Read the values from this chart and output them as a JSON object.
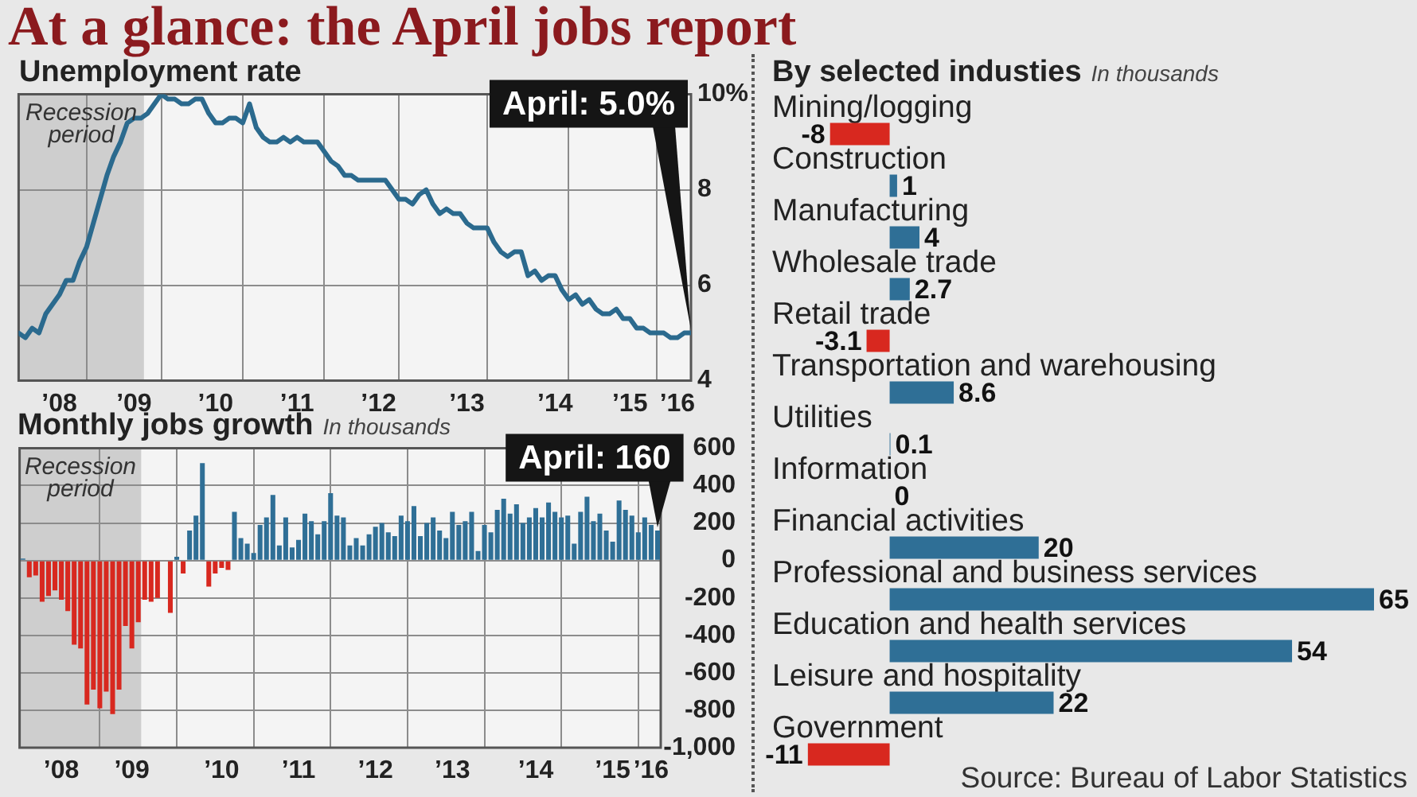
{
  "chart_data": [
    {
      "type": "other",
      "title": "At a glance: the April jobs report"
    },
    {
      "type": "line",
      "title": "Unemployment rate",
      "x": [
        "2008-01",
        "2008-02",
        "2008-03",
        "2008-04",
        "2008-05",
        "2008-06",
        "2008-07",
        "2008-08",
        "2008-09",
        "2008-10",
        "2008-11",
        "2008-12",
        "2009-01",
        "2009-02",
        "2009-03",
        "2009-04",
        "2009-05",
        "2009-06",
        "2009-07",
        "2009-08",
        "2009-09",
        "2009-10",
        "2009-11",
        "2009-12",
        "2010-01",
        "2010-02",
        "2010-03",
        "2010-04",
        "2010-05",
        "2010-06",
        "2010-07",
        "2010-08",
        "2010-09",
        "2010-10",
        "2010-11",
        "2010-12",
        "2011-01",
        "2011-02",
        "2011-03",
        "2011-04",
        "2011-05",
        "2011-06",
        "2011-07",
        "2011-08",
        "2011-09",
        "2011-10",
        "2011-11",
        "2011-12",
        "2012-01",
        "2012-02",
        "2012-03",
        "2012-04",
        "2012-05",
        "2012-06",
        "2012-07",
        "2012-08",
        "2012-09",
        "2012-10",
        "2012-11",
        "2012-12",
        "2013-01",
        "2013-02",
        "2013-03",
        "2013-04",
        "2013-05",
        "2013-06",
        "2013-07",
        "2013-08",
        "2013-09",
        "2013-10",
        "2013-11",
        "2013-12",
        "2014-01",
        "2014-02",
        "2014-03",
        "2014-04",
        "2014-05",
        "2014-06",
        "2014-07",
        "2014-08",
        "2014-09",
        "2014-10",
        "2014-11",
        "2014-12",
        "2015-01",
        "2015-02",
        "2015-03",
        "2015-04",
        "2015-05",
        "2015-06",
        "2015-07",
        "2015-08",
        "2015-09",
        "2015-10",
        "2015-11",
        "2015-12",
        "2016-01",
        "2016-02",
        "2016-03",
        "2016-04"
      ],
      "series": [
        {
          "color": "#2b6a8e",
          "values": [
            5.0,
            4.9,
            5.1,
            5.0,
            5.4,
            5.6,
            5.8,
            6.1,
            6.1,
            6.5,
            6.8,
            7.3,
            7.8,
            8.3,
            8.7,
            9.0,
            9.4,
            9.5,
            9.5,
            9.6,
            9.8,
            10.0,
            9.9,
            9.9,
            9.8,
            9.8,
            9.9,
            9.9,
            9.6,
            9.4,
            9.4,
            9.5,
            9.5,
            9.4,
            9.8,
            9.3,
            9.1,
            9.0,
            9.0,
            9.1,
            9.0,
            9.1,
            9.0,
            9.0,
            9.0,
            8.8,
            8.6,
            8.5,
            8.3,
            8.3,
            8.2,
            8.2,
            8.2,
            8.2,
            8.2,
            8.0,
            7.8,
            7.8,
            7.7,
            7.9,
            8.0,
            7.7,
            7.5,
            7.6,
            7.5,
            7.5,
            7.3,
            7.2,
            7.2,
            7.2,
            6.9,
            6.7,
            6.6,
            6.7,
            6.7,
            6.2,
            6.3,
            6.1,
            6.2,
            6.2,
            5.9,
            5.7,
            5.8,
            5.6,
            5.7,
            5.5,
            5.4,
            5.4,
            5.5,
            5.3,
            5.3,
            5.1,
            5.1,
            5.0,
            5.0,
            5.0,
            4.9,
            4.9,
            5.0,
            5.0
          ]
        }
      ],
      "xlim": [
        "2008-01",
        "2016-04"
      ],
      "xticks": [
        {
          "value": "2008-07",
          "label": "’08"
        },
        {
          "value": "2008-11",
          "label": null
        },
        {
          "value": "2009-06",
          "label": "’09"
        },
        {
          "value": "2009-10",
          "label": null
        },
        {
          "value": "2010-06",
          "label": "’10"
        },
        {
          "value": "2010-10",
          "label": null
        },
        {
          "value": "2011-06",
          "label": "’11"
        },
        {
          "value": "2011-10",
          "label": null
        },
        {
          "value": "2012-06",
          "label": "’12"
        },
        {
          "value": "2012-09",
          "label": null
        },
        {
          "value": "2013-07",
          "label": "’13"
        },
        {
          "value": "2013-10",
          "label": null
        },
        {
          "value": "2014-08",
          "label": "’14"
        },
        {
          "value": "2014-10",
          "label": null
        },
        {
          "value": "2015-07",
          "label": "’15"
        },
        {
          "value": "2015-11",
          "label": null
        },
        {
          "value": "2016-02",
          "label": "’16"
        }
      ],
      "ylim": [
        4,
        10
      ],
      "yticks": [
        4,
        6,
        8,
        {
          "value": 10,
          "label": "10%"
        }
      ],
      "grid": true,
      "bands": [
        {
          "axis": "x",
          "from": "2008-01",
          "to": "2009-07-15",
          "label": "Recession period",
          "color": "#cecece"
        }
      ],
      "annotations": [
        {
          "text": "April: 5.0%",
          "x": "2016-04",
          "y": 5.0
        }
      ]
    },
    {
      "type": "bar",
      "title": "Monthly jobs growth",
      "subtitle": "In thousands",
      "x": [
        "2008-01",
        "2008-02",
        "2008-03",
        "2008-04",
        "2008-05",
        "2008-06",
        "2008-07",
        "2008-08",
        "2008-09",
        "2008-10",
        "2008-11",
        "2008-12",
        "2009-01",
        "2009-02",
        "2009-03",
        "2009-04",
        "2009-05",
        "2009-06",
        "2009-07",
        "2009-08",
        "2009-09",
        "2009-10",
        "2009-11",
        "2009-12",
        "2010-01",
        "2010-02",
        "2010-03",
        "2010-04",
        "2010-05",
        "2010-06",
        "2010-07",
        "2010-08",
        "2010-09",
        "2010-10",
        "2010-11",
        "2010-12",
        "2011-01",
        "2011-02",
        "2011-03",
        "2011-04",
        "2011-05",
        "2011-06",
        "2011-07",
        "2011-08",
        "2011-09",
        "2011-10",
        "2011-11",
        "2011-12",
        "2012-01",
        "2012-02",
        "2012-03",
        "2012-04",
        "2012-05",
        "2012-06",
        "2012-07",
        "2012-08",
        "2012-09",
        "2012-10",
        "2012-11",
        "2012-12",
        "2013-01",
        "2013-02",
        "2013-03",
        "2013-04",
        "2013-05",
        "2013-06",
        "2013-07",
        "2013-08",
        "2013-09",
        "2013-10",
        "2013-11",
        "2013-12",
        "2014-01",
        "2014-02",
        "2014-03",
        "2014-04",
        "2014-05",
        "2014-06",
        "2014-07",
        "2014-08",
        "2014-09",
        "2014-10",
        "2014-11",
        "2014-12",
        "2015-01",
        "2015-02",
        "2015-03",
        "2015-04",
        "2015-05",
        "2015-06",
        "2015-07",
        "2015-08",
        "2015-09",
        "2015-10",
        "2015-11",
        "2015-12",
        "2016-01",
        "2016-02",
        "2016-03",
        "2016-04"
      ],
      "values": [
        10,
        -90,
        -80,
        -220,
        -190,
        -160,
        -210,
        -270,
        -450,
        -470,
        -770,
        -690,
        -790,
        -700,
        -820,
        -690,
        -350,
        -470,
        -330,
        -210,
        -220,
        -200,
        0,
        -280,
        20,
        -70,
        160,
        240,
        520,
        -140,
        -70,
        -40,
        -50,
        260,
        120,
        90,
        40,
        190,
        230,
        350,
        80,
        230,
        70,
        110,
        250,
        210,
        140,
        210,
        360,
        240,
        230,
        80,
        120,
        80,
        140,
        180,
        200,
        150,
        130,
        240,
        210,
        290,
        130,
        200,
        230,
        160,
        120,
        260,
        190,
        210,
        260,
        50,
        190,
        150,
        270,
        330,
        250,
        300,
        200,
        230,
        280,
        230,
        310,
        260,
        230,
        240,
        90,
        260,
        340,
        210,
        250,
        160,
        100,
        320,
        270,
        240,
        150,
        230,
        190,
        160
      ],
      "colors": [
        "#2f6f96",
        "#d8281f",
        "#d8281f",
        "#d8281f",
        "#d8281f",
        "#d8281f",
        "#d8281f",
        "#d8281f",
        "#d8281f",
        "#d8281f",
        "#d8281f",
        "#d8281f",
        "#d8281f",
        "#d8281f",
        "#d8281f",
        "#d8281f",
        "#d8281f",
        "#d8281f",
        "#d8281f",
        "#d8281f",
        "#d8281f",
        "#d8281f",
        "#2f6f96",
        "#d8281f",
        "#2f6f96",
        "#d8281f",
        "#2f6f96",
        "#2f6f96",
        "#2f6f96",
        "#d8281f",
        "#d8281f",
        "#d8281f",
        "#d8281f",
        "#2f6f96",
        "#2f6f96",
        "#2f6f96",
        "#2f6f96",
        "#2f6f96",
        "#2f6f96",
        "#2f6f96",
        "#2f6f96",
        "#2f6f96",
        "#2f6f96",
        "#2f6f96",
        "#2f6f96",
        "#2f6f96",
        "#2f6f96",
        "#2f6f96",
        "#2f6f96",
        "#2f6f96",
        "#2f6f96",
        "#2f6f96",
        "#2f6f96",
        "#2f6f96",
        "#2f6f96",
        "#2f6f96",
        "#2f6f96",
        "#2f6f96",
        "#2f6f96",
        "#2f6f96",
        "#2f6f96",
        "#2f6f96",
        "#2f6f96",
        "#2f6f96",
        "#2f6f96",
        "#2f6f96",
        "#2f6f96",
        "#2f6f96",
        "#2f6f96",
        "#2f6f96",
        "#2f6f96",
        "#2f6f96",
        "#2f6f96",
        "#2f6f96",
        "#2f6f96",
        "#2f6f96",
        "#2f6f96",
        "#2f6f96",
        "#2f6f96",
        "#2f6f96",
        "#2f6f96",
        "#2f6f96",
        "#2f6f96",
        "#2f6f96",
        "#2f6f96",
        "#2f6f96",
        "#2f6f96",
        "#2f6f96",
        "#2f6f96",
        "#2f6f96",
        "#2f6f96",
        "#2f6f96",
        "#2f6f96",
        "#2f6f96",
        "#2f6f96",
        "#2f6f96",
        "#2f6f96",
        "#2f6f96",
        "#2f6f96",
        "#2f6f96"
      ],
      "xlim": [
        "2007-12-16",
        "2016-04-16"
      ],
      "xticks": [
        {
          "value": "2008-07",
          "label": "’08"
        },
        {
          "value": "2009-01",
          "label": null
        },
        {
          "value": "2009-06",
          "label": "’09"
        },
        {
          "value": "2010-01",
          "label": null
        },
        {
          "value": "2010-08",
          "label": "’10"
        },
        {
          "value": "2011-01",
          "label": null
        },
        {
          "value": "2011-08",
          "label": "’11"
        },
        {
          "value": "2012-01",
          "label": null
        },
        {
          "value": "2012-08",
          "label": "’12"
        },
        {
          "value": "2013-01",
          "label": null
        },
        {
          "value": "2013-08",
          "label": "’13"
        },
        {
          "value": "2014-01",
          "label": null
        },
        {
          "value": "2014-09",
          "label": "’14"
        },
        {
          "value": "2015-01",
          "label": null
        },
        {
          "value": "2015-09",
          "label": "’15"
        },
        {
          "value": "2016-01",
          "label": null
        },
        {
          "value": "2016-03",
          "label": "’16"
        }
      ],
      "ylim": [
        -1000,
        600
      ],
      "yticks": [
        600,
        400,
        200,
        0,
        -200,
        -400,
        -600,
        -800,
        {
          "value": -1000,
          "label": "-1,000"
        }
      ],
      "grid": true,
      "bands": [
        {
          "axis": "x",
          "from": "2007-12-16",
          "to": "2009-07-15",
          "label": "Recession period",
          "color": "#cecece"
        }
      ],
      "annotations": [
        {
          "text": "April: 160",
          "x": "2016-04",
          "y": 160
        }
      ]
    },
    {
      "type": "bar",
      "orientation": "horizontal",
      "title": "By selected industies",
      "subtitle": "In thousands",
      "categories": [
        "Mining/logging",
        "Construction",
        "Manufacturing",
        "Wholesale trade",
        "Retail trade",
        "Transportation and warehousing",
        "Utilities",
        "Information",
        "Financial activities",
        "Professional and business services",
        "Education and health services",
        "Leisure and hospitality",
        "Government"
      ],
      "values": [
        -8,
        1,
        4,
        2.7,
        -3.1,
        8.6,
        0.1,
        0,
        20,
        65,
        54,
        22,
        -11
      ],
      "colors": [
        "#d8281f",
        "#2f6f96",
        "#2f6f96",
        "#2f6f96",
        "#d8281f",
        "#2f6f96",
        "#2f6f96",
        "#2f6f96",
        "#2f6f96",
        "#2f6f96",
        "#2f6f96",
        "#2f6f96",
        "#d8281f"
      ],
      "data_labels": true,
      "tick_labels": "y",
      "annotations": [
        "Source: Bureau of Labor Statistics"
      ]
    }
  ]
}
